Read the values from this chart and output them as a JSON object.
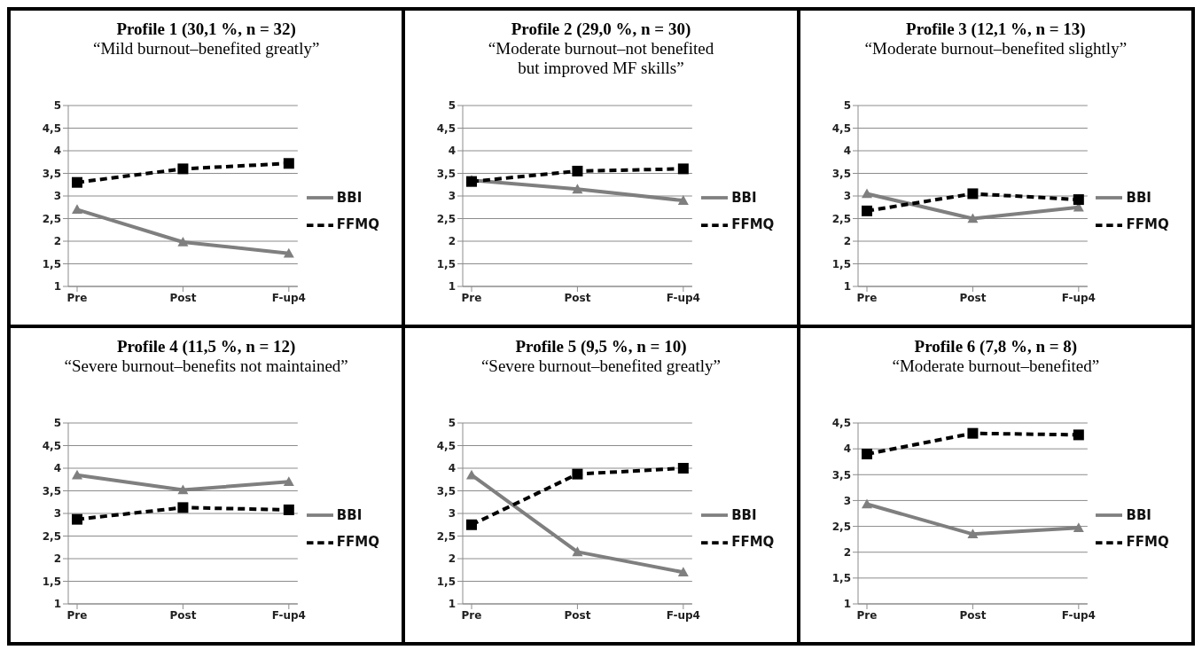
{
  "chart_data": [
    {
      "type": "line",
      "title": "Profile 1 (30,1 %, n = 32)",
      "subtitle": "“Mild burnout–benefited greatly”",
      "categories": [
        "Pre",
        "Post",
        "F-up4"
      ],
      "series": [
        {
          "name": "BBI",
          "color": "#7f7f7f",
          "marker": "triangle",
          "line_style": "solid",
          "values": [
            2.7,
            1.98,
            1.73
          ]
        },
        {
          "name": "FFMQ",
          "color": "#000000",
          "marker": "square",
          "line_style": "dashed",
          "values": [
            3.3,
            3.6,
            3.72
          ]
        }
      ],
      "ylim": [
        1,
        5
      ],
      "yticks": [
        1,
        {
          "value": 1.5,
          "label": "1,5"
        },
        2,
        {
          "value": 2.5,
          "label": "2,5"
        },
        3,
        {
          "value": 3.5,
          "label": "3,5"
        },
        4,
        {
          "value": 4.5,
          "label": "4,5"
        },
        5
      ],
      "grid": "y",
      "legend": "right"
    },
    {
      "type": "line",
      "title": "Profile 2 (29,0 %, n = 30)",
      "subtitle": "“Moderate burnout–not benefited\nbut improved MF skills”",
      "categories": [
        "Pre",
        "Post",
        "F-up4"
      ],
      "series": [
        {
          "name": "BBI",
          "color": "#7f7f7f",
          "marker": "triangle",
          "line_style": "solid",
          "values": [
            3.35,
            3.15,
            2.9
          ]
        },
        {
          "name": "FFMQ",
          "color": "#000000",
          "marker": "square",
          "line_style": "dashed",
          "values": [
            3.32,
            3.55,
            3.6
          ]
        }
      ],
      "ylim": [
        1,
        5
      ],
      "yticks": [
        1,
        {
          "value": 1.5,
          "label": "1,5"
        },
        2,
        {
          "value": 2.5,
          "label": "2,5"
        },
        3,
        {
          "value": 3.5,
          "label": "3,5"
        },
        4,
        {
          "value": 4.5,
          "label": "4,5"
        },
        5
      ],
      "grid": "y",
      "legend": "right"
    },
    {
      "type": "line",
      "title": "Profile 3 (12,1 %, n = 13)",
      "subtitle": "“Moderate burnout–benefited slightly”",
      "categories": [
        "Pre",
        "Post",
        "F-up4"
      ],
      "series": [
        {
          "name": "BBI",
          "color": "#7f7f7f",
          "marker": "triangle",
          "line_style": "solid",
          "values": [
            3.05,
            2.5,
            2.75
          ]
        },
        {
          "name": "FFMQ",
          "color": "#000000",
          "marker": "square",
          "line_style": "dashed",
          "values": [
            2.67,
            3.05,
            2.92
          ]
        }
      ],
      "ylim": [
        1,
        5
      ],
      "yticks": [
        1,
        {
          "value": 1.5,
          "label": "1,5"
        },
        2,
        {
          "value": 2.5,
          "label": "2,5"
        },
        3,
        {
          "value": 3.5,
          "label": "3,5"
        },
        4,
        {
          "value": 4.5,
          "label": "4,5"
        },
        5
      ],
      "grid": "y",
      "legend": "right"
    },
    {
      "type": "line",
      "title": "Profile 4 (11,5 %, n = 12)",
      "subtitle": "“Severe burnout–benefits not maintained”",
      "categories": [
        "Pre",
        "Post",
        "F-up4"
      ],
      "series": [
        {
          "name": "BBI",
          "color": "#7f7f7f",
          "marker": "triangle",
          "line_style": "solid",
          "values": [
            3.85,
            3.52,
            3.7
          ]
        },
        {
          "name": "FFMQ",
          "color": "#000000",
          "marker": "square",
          "line_style": "dashed",
          "values": [
            2.87,
            3.13,
            3.08
          ]
        }
      ],
      "ylim": [
        1,
        5
      ],
      "yticks": [
        1,
        {
          "value": 1.5,
          "label": "1,5"
        },
        2,
        {
          "value": 2.5,
          "label": "2,5"
        },
        3,
        {
          "value": 3.5,
          "label": "3,5"
        },
        4,
        {
          "value": 4.5,
          "label": "4,5"
        },
        5
      ],
      "grid": "y",
      "legend": "right"
    },
    {
      "type": "line",
      "title": "Profile 5 (9,5 %, n = 10)",
      "subtitle": "“Severe burnout–benefited greatly”",
      "categories": [
        "Pre",
        "Post",
        "F-up4"
      ],
      "series": [
        {
          "name": "BBI",
          "color": "#7f7f7f",
          "marker": "triangle",
          "line_style": "solid",
          "values": [
            3.85,
            2.15,
            1.7
          ]
        },
        {
          "name": "FFMQ",
          "color": "#000000",
          "marker": "square",
          "line_style": "dashed",
          "values": [
            2.75,
            3.87,
            4.0
          ]
        }
      ],
      "ylim": [
        1,
        5
      ],
      "yticks": [
        1,
        {
          "value": 1.5,
          "label": "1,5"
        },
        2,
        {
          "value": 2.5,
          "label": "2,5"
        },
        3,
        {
          "value": 3.5,
          "label": "3,5"
        },
        4,
        {
          "value": 4.5,
          "label": "4,5"
        },
        5
      ],
      "grid": "y",
      "legend": "right"
    },
    {
      "type": "line",
      "title": "Profile 6 (7,8 %, n = 8)",
      "subtitle": "“Moderate burnout–benefited”",
      "categories": [
        "Pre",
        "Post",
        "F-up4"
      ],
      "series": [
        {
          "name": "BBI",
          "color": "#7f7f7f",
          "marker": "triangle",
          "line_style": "solid",
          "values": [
            2.93,
            2.35,
            2.47
          ]
        },
        {
          "name": "FFMQ",
          "color": "#000000",
          "marker": "square",
          "line_style": "dashed",
          "values": [
            3.9,
            4.3,
            4.27
          ]
        }
      ],
      "ylim": [
        1,
        4.5
      ],
      "yticks": [
        1,
        {
          "value": 1.5,
          "label": "1,5"
        },
        2,
        {
          "value": 2.5,
          "label": "2,5"
        },
        3,
        {
          "value": 3.5,
          "label": "3,5"
        },
        4,
        {
          "value": 4.5,
          "label": "4,5"
        }
      ],
      "grid": "y",
      "legend": "right"
    }
  ]
}
